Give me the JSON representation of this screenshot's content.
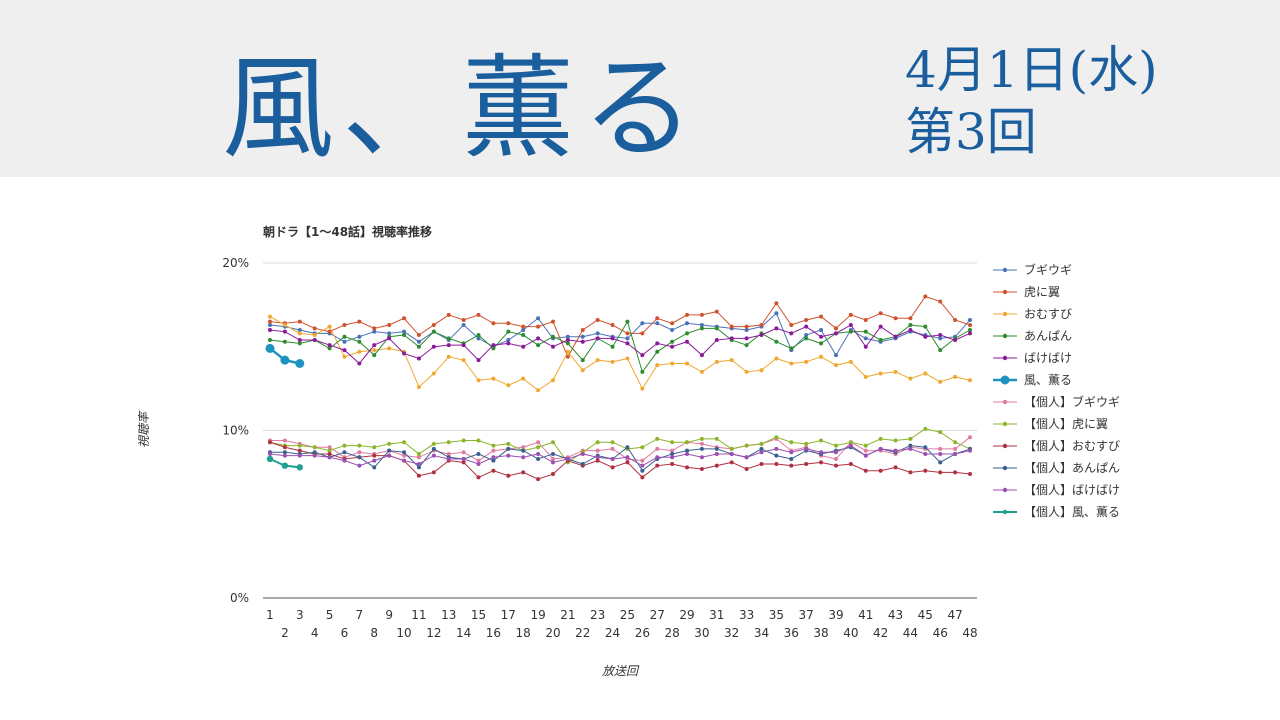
{
  "header": {
    "title": "風、薫る",
    "date": "4月1日(水)",
    "episode": "第3回"
  },
  "chart_data": {
    "type": "line",
    "title": "朝ドラ【1〜48話】視聴率推移",
    "x_label": "放送回",
    "y_label": "視聴率",
    "categories": [
      "1",
      "2",
      "3",
      "4",
      "5",
      "6",
      "7",
      "8",
      "9",
      "10",
      "11",
      "12",
      "13",
      "14",
      "15",
      "16",
      "17",
      "18",
      "19",
      "20",
      "21",
      "22",
      "23",
      "24",
      "25",
      "26",
      "27",
      "28",
      "29",
      "30",
      "31",
      "32",
      "33",
      "34",
      "35",
      "36",
      "37",
      "38",
      "39",
      "40",
      "41",
      "42",
      "43",
      "44",
      "45",
      "46",
      "47",
      "48"
    ],
    "ylim": [
      0,
      20
    ],
    "yticks": [
      {
        "value": 0,
        "label": "0%"
      },
      {
        "value": 10,
        "label": "10%"
      },
      {
        "value": 20,
        "label": "20%"
      }
    ],
    "grid": true,
    "legend": "right",
    "series": [
      {
        "name": "ブギウギ",
        "color": "#4a72b8",
        "line_width": 1,
        "values": [
          16.3,
          16.2,
          16.0,
          15.8,
          15.8,
          15.3,
          15.6,
          15.9,
          15.8,
          15.9,
          15.3,
          15.9,
          15.4,
          16.3,
          15.5,
          15.0,
          15.4,
          16.0,
          16.7,
          15.5,
          15.6,
          15.6,
          15.8,
          15.6,
          15.5,
          16.4,
          16.4,
          16.0,
          16.4,
          16.3,
          16.2,
          16.1,
          16.0,
          16.2,
          17.0,
          14.8,
          15.7,
          16.0,
          14.5,
          16.0,
          15.5,
          15.3,
          15.5,
          15.9,
          15.7,
          15.5,
          15.6,
          16.6
        ]
      },
      {
        "name": "虎に翼",
        "color": "#d0532e",
        "line_width": 1,
        "values": [
          16.5,
          16.4,
          16.5,
          16.1,
          15.9,
          16.3,
          16.5,
          16.1,
          16.3,
          16.7,
          15.7,
          16.3,
          16.9,
          16.6,
          16.9,
          16.4,
          16.4,
          16.2,
          16.2,
          16.5,
          14.4,
          16.0,
          16.6,
          16.3,
          15.8,
          15.8,
          16.7,
          16.4,
          16.9,
          16.9,
          17.1,
          16.2,
          16.2,
          16.3,
          17.6,
          16.3,
          16.6,
          16.8,
          16.1,
          16.9,
          16.6,
          17.0,
          16.7,
          16.7,
          18.0,
          17.7,
          16.6,
          16.3
        ]
      },
      {
        "name": "おむすび",
        "color": "#f0a830",
        "line_width": 1,
        "values": [
          16.8,
          16.3,
          15.8,
          15.7,
          16.2,
          14.4,
          14.7,
          14.8,
          14.9,
          14.7,
          12.6,
          13.4,
          14.4,
          14.2,
          13.0,
          13.1,
          12.7,
          13.1,
          12.4,
          13.0,
          14.7,
          13.6,
          14.2,
          14.1,
          14.3,
          12.5,
          13.9,
          14.0,
          14.0,
          13.5,
          14.1,
          14.2,
          13.5,
          13.6,
          14.3,
          14.0,
          14.1,
          14.4,
          13.9,
          14.1,
          13.2,
          13.4,
          13.5,
          13.1,
          13.4,
          12.9,
          13.2,
          13.0
        ]
      },
      {
        "name": "あんぱん",
        "color": "#2e8b2e",
        "line_width": 1,
        "values": [
          15.4,
          15.3,
          15.2,
          15.4,
          14.9,
          15.6,
          15.3,
          14.5,
          15.6,
          15.7,
          15.0,
          15.9,
          15.5,
          15.2,
          15.7,
          14.9,
          15.9,
          15.7,
          15.1,
          15.6,
          15.2,
          14.2,
          15.5,
          15.0,
          16.5,
          13.5,
          14.7,
          15.3,
          15.8,
          16.1,
          16.1,
          15.4,
          15.1,
          15.8,
          15.3,
          14.9,
          15.5,
          15.2,
          15.8,
          15.9,
          15.9,
          15.4,
          15.6,
          16.3,
          16.2,
          14.8,
          15.5,
          16.0
        ]
      },
      {
        "name": "ばけばけ",
        "color": "#8b1a9b",
        "line_width": 1,
        "values": [
          16.0,
          15.9,
          15.4,
          15.4,
          15.1,
          14.8,
          14.0,
          15.1,
          15.5,
          14.6,
          14.3,
          15.0,
          15.1,
          15.1,
          14.2,
          15.1,
          15.2,
          15.0,
          15.5,
          15.0,
          15.4,
          15.3,
          15.5,
          15.5,
          15.2,
          14.5,
          15.2,
          15.0,
          15.3,
          14.5,
          15.4,
          15.5,
          15.5,
          15.7,
          16.1,
          15.8,
          16.2,
          15.6,
          15.8,
          16.3,
          15.0,
          16.2,
          15.6,
          16.0,
          15.6,
          15.7,
          15.4,
          15.8
        ]
      },
      {
        "name": "風、薫る",
        "color": "#1f93c0",
        "line_width": 2.5,
        "values": [
          14.9,
          14.2,
          14.0,
          null,
          null,
          null,
          null,
          null,
          null,
          null,
          null,
          null,
          null,
          null,
          null,
          null,
          null,
          null,
          null,
          null,
          null,
          null,
          null,
          null,
          null,
          null,
          null,
          null,
          null,
          null,
          null,
          null,
          null,
          null,
          null,
          null,
          null,
          null,
          null,
          null,
          null,
          null,
          null,
          null,
          null,
          null,
          null,
          null
        ]
      },
      {
        "name": "【個人】ブギウギ",
        "color": "#e07aa0",
        "line_width": 1,
        "values": [
          9.4,
          9.4,
          9.2,
          9.0,
          9.0,
          8.4,
          8.7,
          8.6,
          8.8,
          8.5,
          8.4,
          8.8,
          8.6,
          8.7,
          8.2,
          8.8,
          8.9,
          9.0,
          9.3,
          8.3,
          8.4,
          8.8,
          8.8,
          8.9,
          8.3,
          8.2,
          8.9,
          8.8,
          9.3,
          9.2,
          9.0,
          8.9,
          9.1,
          9.2,
          9.5,
          8.8,
          9.0,
          8.5,
          8.3,
          9.3,
          8.8,
          8.8,
          8.6,
          9.0,
          8.9,
          8.9,
          8.9,
          9.6
        ]
      },
      {
        "name": "【個人】虎に翼",
        "color": "#8db52a",
        "line_width": 1,
        "values": [
          9.3,
          9.1,
          9.1,
          9.0,
          8.8,
          9.1,
          9.1,
          9.0,
          9.2,
          9.3,
          8.6,
          9.2,
          9.3,
          9.4,
          9.4,
          9.1,
          9.2,
          8.8,
          9.0,
          9.3,
          8.1,
          8.7,
          9.3,
          9.3,
          8.9,
          9.0,
          9.5,
          9.3,
          9.3,
          9.5,
          9.5,
          8.9,
          9.1,
          9.2,
          9.6,
          9.3,
          9.2,
          9.4,
          9.1,
          9.3,
          9.1,
          9.5,
          9.4,
          9.5,
          10.1,
          9.9,
          9.3,
          8.9
        ]
      },
      {
        "name": "【個人】おむすび",
        "color": "#b03040",
        "line_width": 1,
        "values": [
          9.3,
          9.0,
          8.8,
          8.6,
          8.6,
          8.3,
          8.4,
          8.5,
          8.5,
          8.2,
          7.3,
          7.5,
          8.2,
          8.1,
          7.2,
          7.6,
          7.3,
          7.5,
          7.1,
          7.4,
          8.2,
          7.9,
          8.2,
          7.8,
          8.1,
          7.2,
          7.9,
          8.0,
          7.8,
          7.7,
          7.9,
          8.1,
          7.7,
          8.0,
          8.0,
          7.9,
          8.0,
          8.1,
          7.9,
          8.0,
          7.6,
          7.6,
          7.8,
          7.5,
          7.6,
          7.5,
          7.5,
          7.4
        ]
      },
      {
        "name": "【個人】あんぱん",
        "color": "#3a5f8f",
        "line_width": 1,
        "values": [
          8.7,
          8.7,
          8.6,
          8.7,
          8.4,
          8.7,
          8.4,
          7.8,
          8.8,
          8.7,
          7.8,
          8.9,
          8.4,
          8.3,
          8.6,
          8.2,
          8.9,
          8.8,
          8.3,
          8.6,
          8.3,
          8.0,
          8.5,
          8.3,
          9.0,
          7.6,
          8.3,
          8.6,
          8.8,
          8.9,
          8.9,
          8.6,
          8.4,
          8.9,
          8.5,
          8.3,
          8.8,
          8.6,
          8.8,
          9.0,
          8.5,
          8.9,
          8.7,
          9.1,
          9.0,
          8.1,
          8.6,
          8.9
        ]
      },
      {
        "name": "【個人】ばけばけ",
        "color": "#9b4fb0",
        "line_width": 1,
        "values": [
          8.6,
          8.5,
          8.5,
          8.5,
          8.4,
          8.2,
          7.9,
          8.2,
          8.5,
          8.2,
          8.0,
          8.5,
          8.3,
          8.3,
          8.0,
          8.4,
          8.5,
          8.4,
          8.6,
          8.1,
          8.3,
          8.6,
          8.4,
          8.3,
          8.4,
          7.9,
          8.4,
          8.4,
          8.6,
          8.4,
          8.6,
          8.6,
          8.4,
          8.7,
          8.9,
          8.7,
          8.9,
          8.7,
          8.7,
          9.1,
          8.5,
          8.9,
          8.8,
          8.9,
          8.6,
          8.6,
          8.6,
          8.8
        ]
      },
      {
        "name": "【個人】風、薫る",
        "color": "#20a090",
        "line_width": 2,
        "values": [
          8.3,
          7.9,
          7.8,
          null,
          null,
          null,
          null,
          null,
          null,
          null,
          null,
          null,
          null,
          null,
          null,
          null,
          null,
          null,
          null,
          null,
          null,
          null,
          null,
          null,
          null,
          null,
          null,
          null,
          null,
          null,
          null,
          null,
          null,
          null,
          null,
          null,
          null,
          null,
          null,
          null,
          null,
          null,
          null,
          null,
          null,
          null,
          null,
          null
        ]
      }
    ]
  }
}
